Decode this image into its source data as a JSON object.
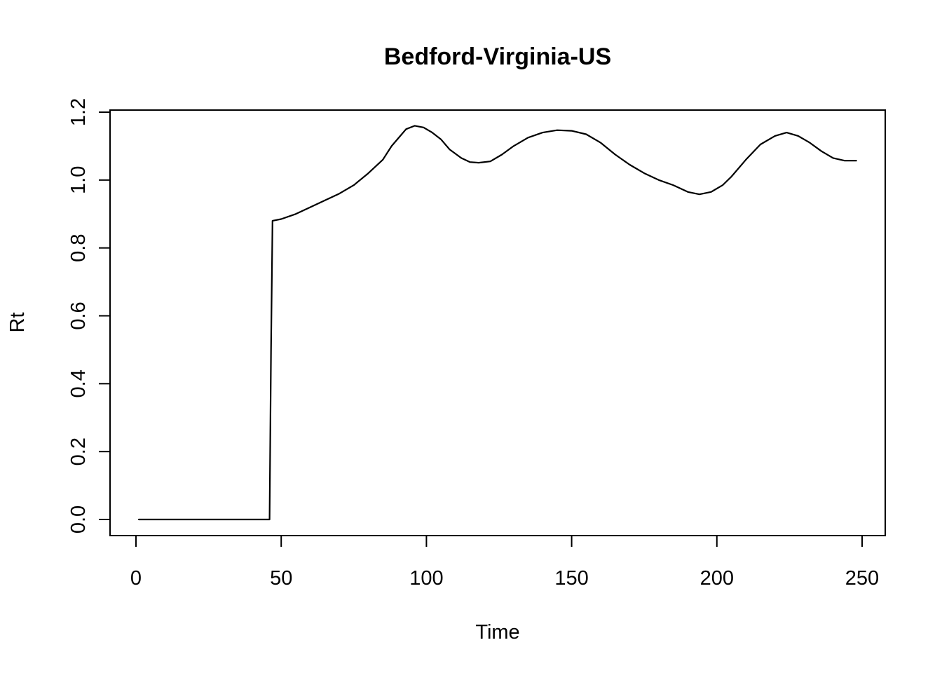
{
  "chart_data": {
    "type": "line",
    "title": "Bedford-Virginia-US",
    "xlabel": "Time",
    "ylabel": "Rt",
    "xlim": [
      1,
      248
    ],
    "ylim": [
      0,
      1.2
    ],
    "x_ticks": [
      0,
      50,
      100,
      150,
      200,
      250
    ],
    "y_ticks": [
      0.0,
      0.2,
      0.4,
      0.6,
      0.8,
      1.0,
      1.2
    ],
    "x_tick_labels": [
      "0",
      "50",
      "100",
      "150",
      "200",
      "250"
    ],
    "y_tick_labels": [
      "0.0",
      "0.2",
      "0.4",
      "0.6",
      "0.8",
      "1.0",
      "1.2"
    ],
    "grid": false,
    "series": [
      {
        "color": "#000000",
        "points": [
          [
            1,
            0.0
          ],
          [
            46,
            0.0
          ],
          [
            46.5,
            0.5
          ],
          [
            47,
            0.88
          ],
          [
            50,
            0.885
          ],
          [
            55,
            0.9
          ],
          [
            60,
            0.92
          ],
          [
            65,
            0.94
          ],
          [
            70,
            0.96
          ],
          [
            75,
            0.985
          ],
          [
            80,
            1.02
          ],
          [
            85,
            1.06
          ],
          [
            88,
            1.1
          ],
          [
            91,
            1.13
          ],
          [
            93,
            1.15
          ],
          [
            96,
            1.16
          ],
          [
            99,
            1.155
          ],
          [
            102,
            1.14
          ],
          [
            105,
            1.12
          ],
          [
            108,
            1.09
          ],
          [
            112,
            1.065
          ],
          [
            115,
            1.053
          ],
          [
            118,
            1.051
          ],
          [
            122,
            1.055
          ],
          [
            126,
            1.075
          ],
          [
            130,
            1.1
          ],
          [
            135,
            1.125
          ],
          [
            140,
            1.14
          ],
          [
            145,
            1.147
          ],
          [
            150,
            1.145
          ],
          [
            155,
            1.135
          ],
          [
            160,
            1.11
          ],
          [
            165,
            1.075
          ],
          [
            170,
            1.045
          ],
          [
            175,
            1.02
          ],
          [
            180,
            1.0
          ],
          [
            185,
            0.985
          ],
          [
            190,
            0.965
          ],
          [
            194,
            0.958
          ],
          [
            198,
            0.965
          ],
          [
            202,
            0.985
          ],
          [
            205,
            1.01
          ],
          [
            210,
            1.06
          ],
          [
            215,
            1.105
          ],
          [
            220,
            1.13
          ],
          [
            224,
            1.14
          ],
          [
            228,
            1.13
          ],
          [
            232,
            1.11
          ],
          [
            236,
            1.085
          ],
          [
            240,
            1.065
          ],
          [
            244,
            1.057
          ],
          [
            248,
            1.057
          ]
        ]
      }
    ]
  }
}
